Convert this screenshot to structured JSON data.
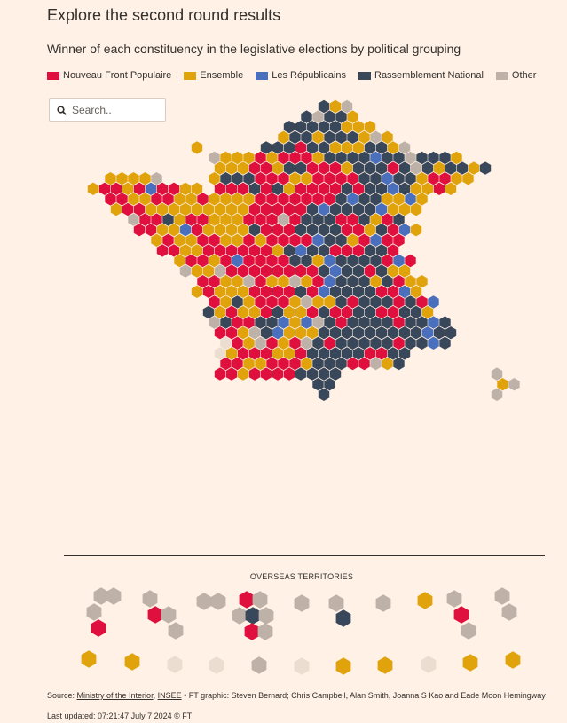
{
  "header": {
    "title": "Explore the second round results",
    "subtitle": "Winner of each constituency in the legislative elections by political grouping"
  },
  "legend": [
    {
      "key": "nfp",
      "label": "Nouveau Front Populaire",
      "color": "#e0103e"
    },
    {
      "key": "ens",
      "label": "Ensemble",
      "color": "#e0a30c"
    },
    {
      "key": "lr",
      "label": "Les Républicains",
      "color": "#4a6fbc"
    },
    {
      "key": "rn",
      "label": "Rassemblement National",
      "color": "#39475a"
    },
    {
      "key": "oth",
      "label": "Other",
      "color": "#bdb1a8"
    }
  ],
  "pending_color": "#ecddd1",
  "search": {
    "placeholder": "Search..",
    "icon": "search-icon"
  },
  "overseas": {
    "title": "OVERSEAS TERRITORIES"
  },
  "footer": {
    "source_prefix": "Source: ",
    "source_link_1": "Ministry of the Interior",
    "source_sep": ", ",
    "source_link_2": "INSEE",
    "credits": " • FT graphic: Steven Bernard; Chris Campbell, Alan Smith, Joanna S Kao and Eade Moon Hemingway",
    "updated": "Last updated: 07:21:47 July 7 2024 © FT"
  }
}
